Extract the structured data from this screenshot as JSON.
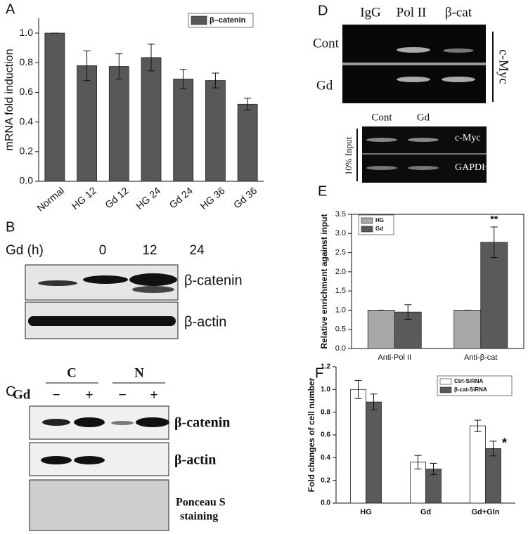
{
  "chart_data": [
    {
      "type": "bar",
      "panel": "A",
      "ylabel": "mRNA fold induction",
      "categories": [
        "Normal",
        "HG 12",
        "Gd 12",
        "HG 24",
        "Gd 24",
        "HG 36",
        "Gd 36"
      ],
      "series": [
        {
          "name": "β–catenin",
          "color": "#585858",
          "values": [
            1.0,
            0.78,
            0.775,
            0.835,
            0.69,
            0.68,
            0.52
          ],
          "errors": [
            0,
            0.1,
            0.085,
            0.09,
            0.065,
            0.05,
            0.04
          ]
        }
      ],
      "ylim": [
        0,
        1.1
      ],
      "yticks": [
        {
          "value": 0,
          "label": "0.0"
        },
        0.2,
        0.4,
        0.6,
        0.8,
        {
          "value": 1,
          "label": "1.0"
        }
      ],
      "legend": "top-right"
    },
    {
      "type": "bar",
      "panel": "E",
      "ylabel": "Relative enrichment against input",
      "categories": [
        "Anti-Pol II",
        "Anti-β-cat"
      ],
      "series": [
        {
          "name": "HG",
          "color": "#a8a8a8",
          "values": [
            1.0,
            1.0
          ],
          "errors": [
            0,
            0
          ]
        },
        {
          "name": "Gd",
          "color": "#5a5a5a",
          "values": [
            0.95,
            2.77
          ],
          "errors": [
            0.19,
            0.4
          ]
        }
      ],
      "ylim": [
        0,
        3.5
      ],
      "yticks": [
        {
          "value": 0,
          "label": "0.0"
        },
        0.5,
        {
          "value": 1,
          "label": "1.0"
        },
        1.5,
        {
          "value": 2,
          "label": "2.0"
        },
        2.5,
        {
          "value": 3,
          "label": "3.0"
        },
        3.5
      ],
      "annotations": [
        "**"
      ],
      "legend": "top-left"
    },
    {
      "type": "bar",
      "panel": "F",
      "ylabel": "Fold changes of cell number",
      "categories": [
        "HG",
        "Gd",
        "Gd+Gln"
      ],
      "series": [
        {
          "name": "Ctrl-SiRNA",
          "color": "#ffffff",
          "values": [
            1.0,
            0.36,
            0.68
          ],
          "errors": [
            0.08,
            0.06,
            0.05
          ]
        },
        {
          "name": "β-cat-SiRNA",
          "color": "#5a5a5a",
          "values": [
            0.89,
            0.3,
            0.48
          ],
          "errors": [
            0.07,
            0.05,
            0.065
          ]
        }
      ],
      "ylim": [
        0,
        1.2
      ],
      "yticks": [
        {
          "value": 0,
          "label": "0.0"
        },
        0.2,
        0.4,
        0.6,
        0.8,
        {
          "value": 1,
          "label": "1.0"
        },
        1.2
      ],
      "annotations": [
        "*"
      ],
      "legend": "top-right"
    }
  ],
  "blots": {
    "B": {
      "label": "B",
      "treatment": "Gd (h)",
      "lanes": [
        "0",
        "12",
        "24"
      ],
      "rows": [
        "β-catenin",
        "β-actin"
      ]
    },
    "C": {
      "label": "C",
      "groups": [
        "C",
        "N"
      ],
      "treatment": "Gd",
      "lanes": [
        "−",
        "+",
        "−",
        "+"
      ],
      "rows": [
        "β-catenin",
        "β-actin"
      ],
      "stain": [
        "Ponceau S",
        "staining"
      ]
    },
    "D": {
      "label": "D",
      "lanes": [
        "IgG",
        "Pol II",
        "β-cat"
      ],
      "rows": [
        "Cont",
        "Gd"
      ],
      "target": "c-Myc",
      "input": {
        "lanes": [
          "Cont",
          "Gd"
        ],
        "rows": [
          "c-Myc",
          "GAPDH"
        ],
        "label": "10% Input"
      }
    }
  }
}
